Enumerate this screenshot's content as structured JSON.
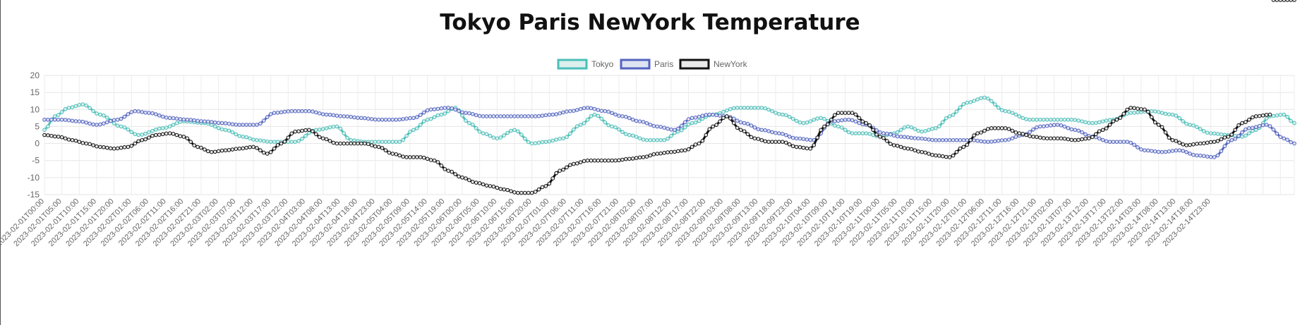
{
  "chart_data": {
    "type": "line",
    "title": "Tokyo Paris NewYork Temperature",
    "xlabel": "",
    "ylabel": "",
    "ylim": [
      -15,
      20
    ],
    "y_ticks": [
      20,
      15,
      10,
      5,
      0,
      -5,
      -10,
      -15
    ],
    "grid": true,
    "legend_position": "top",
    "x_tick_labels": [
      "2023-02-01T00:00",
      "2023-02-01T05:00",
      "2023-02-01T10:00",
      "2023-02-01T15:00",
      "2023-02-01T20:00",
      "2023-02-02T01:00",
      "2023-02-02T06:00",
      "2023-02-02T11:00",
      "2023-02-02T16:00",
      "2023-02-02T21:00",
      "2023-02-03T02:00",
      "2023-02-03T07:00",
      "2023-02-03T12:00",
      "2023-02-03T17:00",
      "2023-02-03T22:00",
      "2023-02-04T03:00",
      "2023-02-04T08:00",
      "2023-02-04T13:00",
      "2023-02-04T18:00",
      "2023-02-04T23:00",
      "2023-02-05T04:00",
      "2023-02-05T09:00",
      "2023-02-05T14:00",
      "2023-02-05T19:00",
      "2023-02-06T00:00",
      "2023-02-06T05:00",
      "2023-02-06T10:00",
      "2023-02-06T15:00",
      "2023-02-06T20:00",
      "2023-02-07T01:00",
      "2023-02-07T06:00",
      "2023-02-07T11:00",
      "2023-02-07T16:00",
      "2023-02-07T21:00",
      "2023-02-08T02:00",
      "2023-02-08T07:00",
      "2023-02-08T12:00",
      "2023-02-08T17:00",
      "2023-02-08T22:00",
      "2023-02-09T03:00",
      "2023-02-09T08:00",
      "2023-02-09T13:00",
      "2023-02-09T18:00",
      "2023-02-09T23:00",
      "2023-02-10T04:00",
      "2023-02-10T09:00",
      "2023-02-10T14:00",
      "2023-02-10T19:00",
      "2023-02-11T00:00",
      "2023-02-11T05:00",
      "2023-02-11T10:00",
      "2023-02-11T15:00",
      "2023-02-11T20:00",
      "2023-02-12T01:00",
      "2023-02-12T06:00",
      "2023-02-12T11:00",
      "2023-02-12T16:00",
      "2023-02-12T21:00",
      "2023-02-13T02:00",
      "2023-02-13T07:00",
      "2023-02-13T12:00",
      "2023-02-13T17:00",
      "2023-02-13T22:00",
      "2023-02-14T03:00",
      "2023-02-14T08:00",
      "2023-02-14T13:00",
      "2023-02-14T18:00",
      "2023-02-14T23:00"
    ],
    "series": [
      {
        "name": "Tokyo",
        "color": "#4bbfb8",
        "fill": "#dcefee",
        "keypoints_hours": [
          0,
          3,
          7,
          11,
          16,
          22,
          27,
          34,
          40,
          46,
          52,
          57,
          61,
          65,
          72,
          78,
          84,
          88,
          92,
          97,
          102,
          106,
          110,
          114,
          118,
          122,
          126,
          130,
          135,
          140,
          144,
          149,
          154,
          158,
          163,
          168,
          173,
          178,
          182,
          186,
          192,
          199,
          206,
          212,
          218,
          223,
          228,
          232,
          236,
          240,
          244,
          248,
          252,
          256,
          260,
          265,
          270,
          276,
          283,
          289,
          295,
          301,
          307,
          312,
          318,
          324,
          329,
          335,
          340,
          344,
          348,
          352,
          356,
          359
        ],
        "keypoints_values": [
          4,
          8,
          10.5,
          11.5,
          8.5,
          5,
          2.5,
          4.5,
          6.5,
          6,
          4,
          2,
          1,
          0.5,
          0.5,
          4,
          5,
          1,
          0.5,
          0.5,
          0.5,
          4,
          7,
          8.5,
          10.5,
          6,
          3,
          1.5,
          4,
          0,
          0.5,
          1.5,
          5.5,
          8.5,
          5,
          2.5,
          1,
          1,
          3.5,
          6,
          8.5,
          10.5,
          10.5,
          8.5,
          6,
          7.5,
          5,
          3,
          3,
          2,
          3,
          5,
          3.5,
          4.5,
          8,
          12,
          13.5,
          9.5,
          7,
          7,
          7,
          6,
          7,
          9,
          9.5,
          8.5,
          5.5,
          3,
          2.5,
          2,
          4,
          8,
          8.5,
          6
        ]
      },
      {
        "name": "Paris",
        "color": "#5463c0",
        "fill": "#dde3f1",
        "keypoints_hours": [
          0,
          5,
          10,
          15,
          21,
          26,
          30,
          36,
          41,
          46,
          51,
          56,
          61,
          66,
          71,
          76,
          81,
          86,
          91,
          96,
          101,
          106,
          111,
          116,
          121,
          126,
          131,
          136,
          141,
          146,
          151,
          156,
          161,
          166,
          171,
          176,
          181,
          186,
          191,
          196,
          201,
          206,
          211,
          216,
          221,
          226,
          231,
          236,
          241,
          246,
          251,
          256,
          261,
          266,
          271,
          276,
          281,
          286,
          291,
          296,
          301,
          306,
          311,
          316,
          321,
          326,
          331,
          336,
          341,
          346,
          351,
          356,
          359
        ],
        "keypoints_values": [
          7,
          7,
          6.5,
          5.5,
          7,
          9.5,
          9,
          7.5,
          7,
          6.5,
          6,
          5.5,
          5.5,
          9,
          9.5,
          9.5,
          8.5,
          8,
          7.5,
          7,
          7,
          7.5,
          10,
          10.5,
          9,
          8,
          8,
          8,
          8,
          8.5,
          9.5,
          10.5,
          9.5,
          8,
          6.5,
          5,
          4,
          7.5,
          8.5,
          8,
          6,
          4,
          3,
          1.5,
          1,
          6.5,
          7,
          5.5,
          3,
          2,
          1.5,
          1,
          1,
          1,
          0.5,
          1,
          2.5,
          5,
          5.5,
          4,
          2,
          0.5,
          0.5,
          -2,
          -2.5,
          -2,
          -3.5,
          -4,
          1,
          4.5,
          5.5,
          1.5,
          0
        ]
      },
      {
        "name": "NewYork",
        "color": "#111111",
        "fill": "#e9e9e9",
        "keypoints_hours": [
          0,
          4,
          8,
          12,
          16,
          20,
          24,
          28,
          32,
          36,
          40,
          44,
          48,
          52,
          56,
          60,
          64,
          68,
          72,
          76,
          80,
          84,
          88,
          92,
          96,
          100,
          104,
          108,
          112,
          116,
          120,
          124,
          128,
          132,
          136,
          140,
          144,
          148,
          152,
          156,
          160,
          164,
          168,
          172,
          176,
          180,
          184,
          188,
          192,
          196,
          200,
          204,
          208,
          212,
          216,
          220,
          224,
          228,
          232,
          236,
          240,
          244,
          248,
          252,
          256,
          260,
          264,
          268,
          272,
          276,
          280,
          284,
          288,
          292,
          296,
          300,
          304,
          308,
          312,
          316,
          320,
          324,
          328,
          332,
          336,
          340,
          344,
          348,
          352,
          356,
          359
        ],
        "keypoints_values": [
          2.5,
          2,
          1,
          0,
          -1,
          -1.5,
          -1,
          1,
          2.5,
          3,
          2,
          -1,
          -2.5,
          -2,
          -1.5,
          -1,
          -3,
          0,
          3.5,
          4,
          1.5,
          0,
          0,
          0,
          -1,
          -3,
          -4,
          -4,
          -5,
          -8,
          -10,
          -11.5,
          -12.5,
          -13.5,
          -14.5,
          -14.5,
          -12.5,
          -8,
          -6,
          -5,
          -5,
          -5,
          -4.5,
          -4,
          -3,
          -2.5,
          -2,
          0,
          5,
          8,
          4,
          1.5,
          0.5,
          0.5,
          -1,
          -1.5,
          5,
          9,
          9,
          6,
          2,
          -0.5,
          -1.5,
          -2.5,
          -3.5,
          -4,
          -1,
          3,
          4.5,
          4.5,
          3,
          2,
          1.5,
          1.5,
          1,
          1.5,
          4,
          7,
          10.5,
          10,
          5.5,
          1,
          -0.5,
          0,
          0.5,
          2,
          6,
          8,
          8.5
        ]
      }
    ]
  }
}
